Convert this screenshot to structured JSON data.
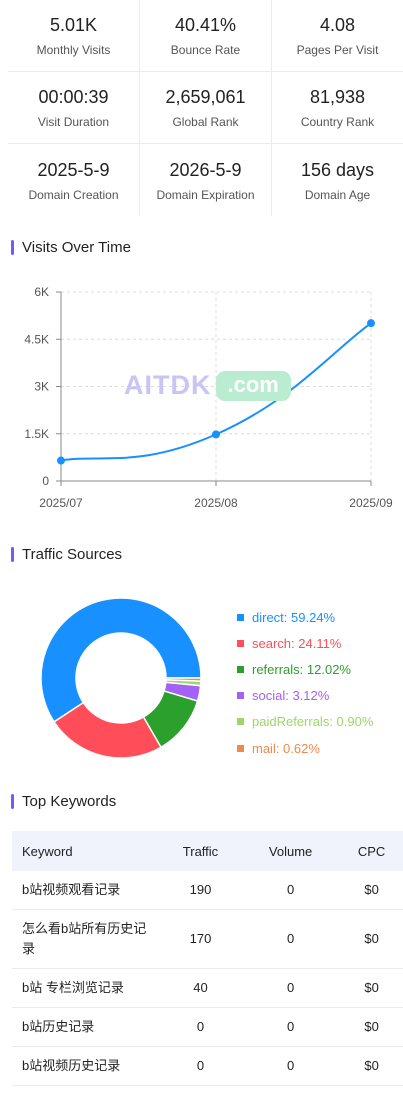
{
  "stats": [
    [
      {
        "value": "5.01K",
        "label": "Monthly Visits"
      },
      {
        "value": "40.41%",
        "label": "Bounce Rate"
      },
      {
        "value": "4.08",
        "label": "Pages Per Visit"
      }
    ],
    [
      {
        "value": "00:00:39",
        "label": "Visit Duration"
      },
      {
        "value": "2,659,061",
        "label": "Global Rank"
      },
      {
        "value": "81,938",
        "label": "Country Rank"
      }
    ],
    [
      {
        "value": "2025-5-9",
        "label": "Domain Creation"
      },
      {
        "value": "2026-5-9",
        "label": "Domain Expiration"
      },
      {
        "value": "156 days",
        "label": "Domain Age"
      }
    ]
  ],
  "sections": {
    "visits": "Visits Over Time",
    "traffic": "Traffic Sources",
    "keywords": "Top Keywords"
  },
  "watermark": {
    "part1": "AITDK",
    "part2": ".com"
  },
  "chart_data": [
    {
      "type": "line",
      "categories": [
        "2025/07",
        "2025/08",
        "2025/09"
      ],
      "values": [
        650,
        1480,
        5010
      ],
      "ylim": [
        0,
        6000
      ],
      "yticks": [
        "0",
        "1.5K",
        "3K",
        "4.5K",
        "6K"
      ],
      "grid": true,
      "color": "#1890ff"
    },
    {
      "type": "pie",
      "labels": [
        "direct",
        "search",
        "referrals",
        "social",
        "paidReferrals",
        "mail"
      ],
      "values": [
        59.24,
        24.11,
        12.02,
        3.12,
        0.9,
        0.62
      ],
      "display": [
        "direct: 59.24%",
        "search: 24.11%",
        "referrals: 12.02%",
        "social: 3.12%",
        "paidReferrals: 0.90%",
        "mail: 0.62%"
      ],
      "colors": [
        "#1890ff",
        "#ff4d5a",
        "#2ca02c",
        "#a461f5",
        "#9ed66a",
        "#f08a4b"
      ],
      "legend": "right"
    }
  ],
  "keywords": {
    "headers": [
      "Keyword",
      "Traffic",
      "Volume",
      "CPC"
    ],
    "rows": [
      [
        "b站视频观看记录",
        "190",
        "0",
        "$0"
      ],
      [
        "怎么看b站所有历史记录",
        "170",
        "0",
        "$0"
      ],
      [
        "b站 专栏浏览记录",
        "40",
        "0",
        "$0"
      ],
      [
        "b站历史记录",
        "0",
        "0",
        "$0"
      ],
      [
        "b站视频历史记录",
        "0",
        "0",
        "$0"
      ]
    ]
  }
}
